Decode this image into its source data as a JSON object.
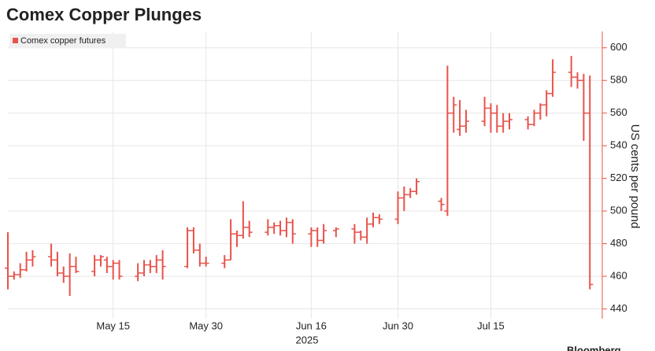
{
  "chart_data": {
    "type": "ohlc",
    "title": "Comex Copper Plunges",
    "y_label": "US cents per pound",
    "x_year_label": "2025",
    "source": "Bloomberg",
    "x": [
      "2025-04-28",
      "2025-04-29",
      "2025-04-30",
      "2025-05-01",
      "2025-05-02",
      "2025-05-05",
      "2025-05-06",
      "2025-05-07",
      "2025-05-08",
      "2025-05-09",
      "2025-05-12",
      "2025-05-13",
      "2025-05-14",
      "2025-05-15",
      "2025-05-16",
      "2025-05-19",
      "2025-05-20",
      "2025-05-21",
      "2025-05-22",
      "2025-05-23",
      "2025-05-27",
      "2025-05-28",
      "2025-05-29",
      "2025-05-30",
      "2025-06-02",
      "2025-06-03",
      "2025-06-04",
      "2025-06-05",
      "2025-06-06",
      "2025-06-09",
      "2025-06-10",
      "2025-06-11",
      "2025-06-12",
      "2025-06-13",
      "2025-06-16",
      "2025-06-17",
      "2025-06-18",
      "2025-06-20",
      "2025-06-23",
      "2025-06-24",
      "2025-06-25",
      "2025-06-26",
      "2025-06-27",
      "2025-06-30",
      "2025-07-01",
      "2025-07-02",
      "2025-07-03",
      "2025-07-07",
      "2025-07-08",
      "2025-07-09",
      "2025-07-10",
      "2025-07-11",
      "2025-07-14",
      "2025-07-15",
      "2025-07-16",
      "2025-07-17",
      "2025-07-18",
      "2025-07-21",
      "2025-07-22",
      "2025-07-23",
      "2025-07-24",
      "2025-07-25",
      "2025-07-28",
      "2025-07-29",
      "2025-07-30",
      "2025-07-31"
    ],
    "series": [
      {
        "name": "Comex copper futures",
        "color": "#e8524a",
        "open": [
          465,
          460,
          461,
          464,
          470,
          472,
          470,
          462,
          460,
          466,
          463,
          470,
          470,
          466,
          468,
          460,
          462,
          467,
          466,
          470,
          466,
          488,
          476,
          468,
          468,
          470,
          486,
          485,
          490,
          487,
          490,
          491,
          488,
          493,
          486,
          488,
          482,
          488,
          489,
          487,
          484,
          492,
          496,
          495,
          508,
          510,
          512,
          506,
          500,
          560,
          550,
          552,
          555,
          563,
          560,
          552,
          555,
          556,
          553,
          560,
          565,
          572,
          585,
          582,
          580,
          560
        ],
        "high": [
          487,
          463,
          468,
          475,
          476,
          480,
          475,
          466,
          474,
          472,
          473,
          473,
          472,
          470,
          470,
          468,
          470,
          470,
          473,
          476,
          490,
          490,
          480,
          472,
          473,
          495,
          488,
          506,
          494,
          495,
          493,
          494,
          496,
          495,
          490,
          490,
          492,
          490,
          492,
          488,
          496,
          499,
          498,
          512,
          515,
          514,
          520,
          508,
          589,
          570,
          568,
          562,
          570,
          566,
          565,
          560,
          560,
          558,
          562,
          566,
          574,
          593,
          595,
          585,
          584,
          583
        ],
        "low": [
          452,
          458,
          459,
          463,
          466,
          466,
          460,
          456,
          448,
          462,
          460,
          466,
          462,
          458,
          458,
          457,
          460,
          462,
          462,
          458,
          465,
          474,
          466,
          466,
          465,
          470,
          478,
          483,
          484,
          485,
          486,
          485,
          484,
          480,
          478,
          478,
          480,
          484,
          480,
          482,
          480,
          490,
          492,
          492,
          500,
          508,
          510,
          500,
          497,
          548,
          546,
          548,
          552,
          548,
          548,
          548,
          550,
          550,
          552,
          556,
          558,
          570,
          576,
          575,
          543,
          452
        ],
        "close": [
          460,
          461,
          464,
          470,
          472,
          470,
          462,
          460,
          466,
          463,
          470,
          472,
          466,
          468,
          460,
          462,
          467,
          466,
          470,
          466,
          488,
          476,
          468,
          468,
          470,
          486,
          485,
          490,
          487,
          490,
          491,
          488,
          493,
          486,
          488,
          482,
          488,
          489,
          487,
          484,
          492,
          496,
          495,
          508,
          510,
          512,
          518,
          504,
          560,
          565,
          552,
          555,
          563,
          560,
          552,
          555,
          556,
          553,
          560,
          565,
          572,
          585,
          582,
          580,
          560,
          455
        ]
      }
    ],
    "xlim": [
      "2025-04-28",
      "2025-08-02"
    ],
    "xticks": [
      {
        "value": "2025-05-15",
        "label": "May 15"
      },
      {
        "value": "2025-05-30",
        "label": "May 30"
      },
      {
        "value": "2025-06-16",
        "label": "Jun 16"
      },
      {
        "value": "2025-06-30",
        "label": "Jun 30"
      },
      {
        "value": "2025-07-15",
        "label": "Jul 15"
      }
    ],
    "ylim": [
      434,
      610
    ],
    "yticks": [
      440,
      460,
      480,
      500,
      520,
      540,
      560,
      580,
      600
    ],
    "grid": true,
    "legend": "top-left"
  }
}
